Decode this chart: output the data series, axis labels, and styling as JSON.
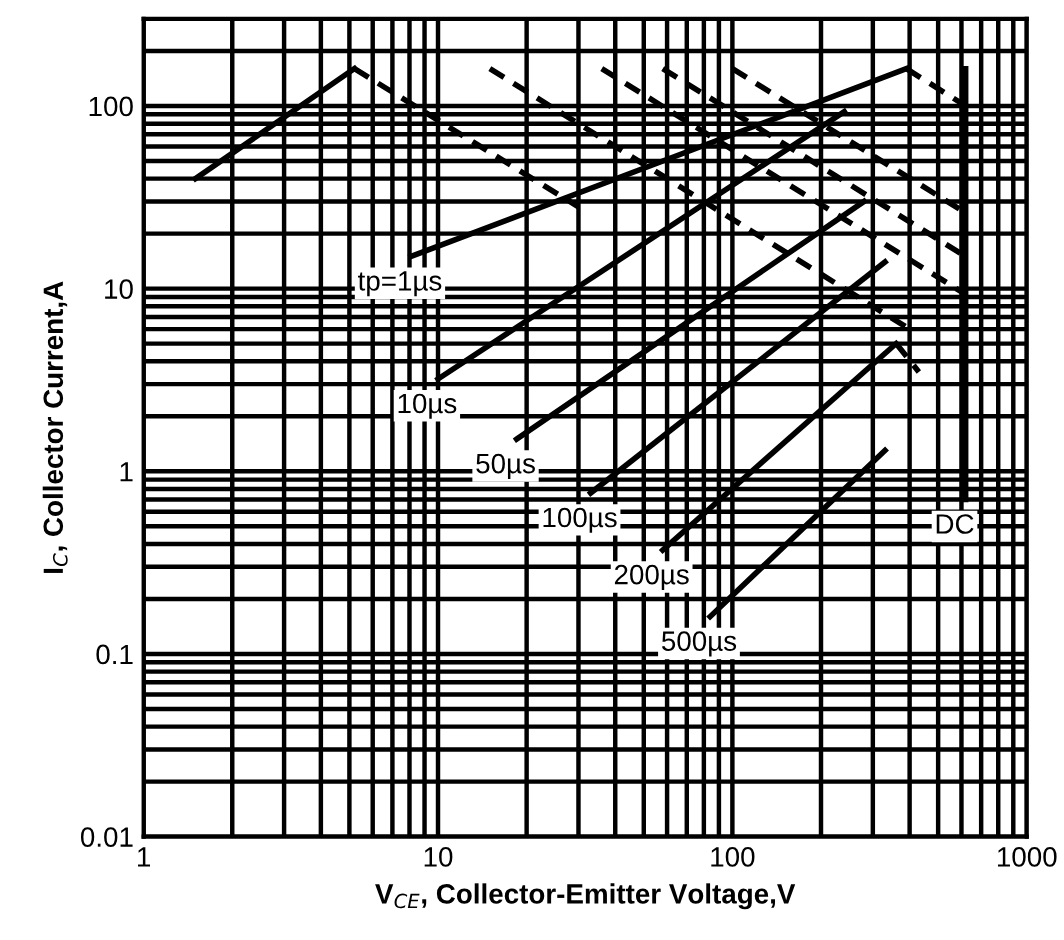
{
  "chart_data": {
    "type": "line",
    "xlabel": "V$_{CE}$, Collector-Emitter Voltage,V",
    "ylabel": "I$_{C}$, Collector Current,A",
    "log": "xy",
    "xlim": [
      1,
      1000
    ],
    "xticks": [
      1,
      10,
      100,
      1000
    ],
    "ylim": [
      0.01,
      300
    ],
    "yticks": [
      0.01,
      0.1,
      1,
      10,
      100
    ],
    "grid": true,
    "legend": false,
    "series": [
      {
        "color": "#000000",
        "line_style": "solid",
        "x": [
          1.5,
          5.2
        ],
        "values": [
          40,
          160
        ]
      },
      {
        "color": "#000000",
        "line_style": "dashed",
        "x": [
          5.2,
          30
        ],
        "values": [
          160,
          28
        ]
      },
      {
        "name": "tp=1µs",
        "color": "#000000",
        "line_style": "solid",
        "x": [
          8.1,
          390
        ],
        "values": [
          15,
          160
        ]
      },
      {
        "color": "#000000",
        "line_style": "dashed",
        "x": [
          15,
          400
        ],
        "values": [
          160,
          6
        ]
      },
      {
        "color": "#000000",
        "line_style": "dashed",
        "x": [
          36,
          620
        ],
        "values": [
          160,
          9.3
        ]
      },
      {
        "color": "#000000",
        "line_style": "dashed",
        "x": [
          58,
          620
        ],
        "values": [
          160,
          15
        ]
      },
      {
        "color": "#000000",
        "line_style": "dashed",
        "x": [
          100,
          620
        ],
        "values": [
          160,
          26
        ]
      },
      {
        "color": "#000000",
        "line_style": "dashed",
        "x": [
          390,
          620
        ],
        "values": [
          160,
          100
        ]
      },
      {
        "name": "10µs",
        "color": "#000000",
        "line_style": "solid",
        "x": [
          10,
          240
        ],
        "values": [
          3.2,
          93
        ]
      },
      {
        "name": "50µs",
        "color": "#000000",
        "line_style": "solid",
        "x": [
          18.5,
          280
        ],
        "values": [
          1.5,
          30
        ]
      },
      {
        "name": "100µs",
        "color": "#000000",
        "line_style": "solid",
        "x": [
          33,
          330
        ],
        "values": [
          0.76,
          14
        ]
      },
      {
        "name": "200µs",
        "color": "#000000",
        "line_style": "solid",
        "x": [
          58,
          360
        ],
        "values": [
          0.37,
          5
        ]
      },
      {
        "color": "#000000",
        "line_style": "dashed",
        "x": [
          360,
          430
        ],
        "values": [
          5,
          3.5
        ]
      },
      {
        "name": "500µs",
        "color": "#000000",
        "line_style": "solid",
        "x": [
          84,
          330
        ],
        "values": [
          0.16,
          1.3
        ]
      },
      {
        "name": "DC",
        "color": "#000000",
        "line_style": "solid",
        "x": [
          620,
          620
        ],
        "values": [
          160,
          0.7
        ]
      }
    ]
  }
}
